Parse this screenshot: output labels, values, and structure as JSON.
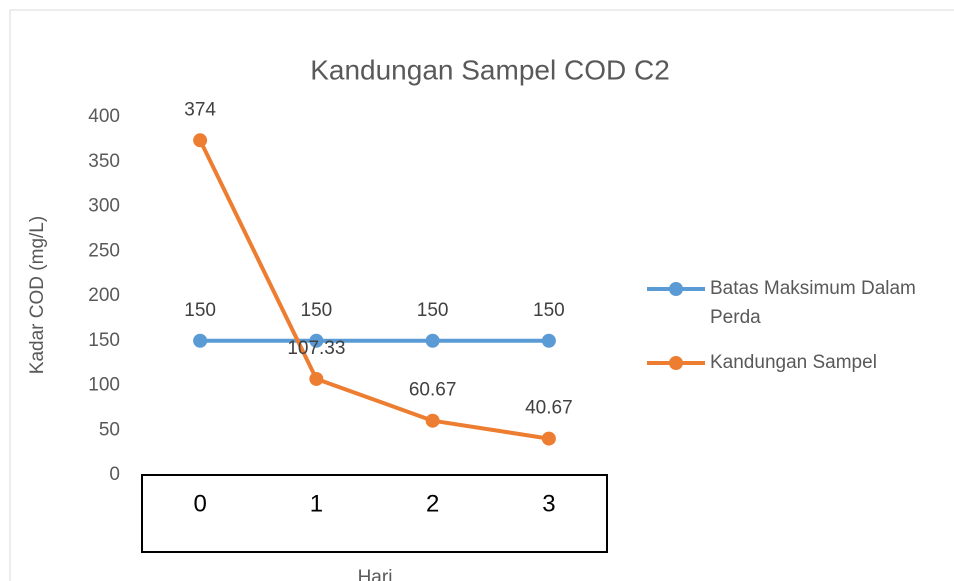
{
  "chart_data": {
    "type": "line",
    "title": "Kandungan Sampel COD C2",
    "xlabel": "Hari",
    "ylabel": "Kadar COD (mg/L)",
    "categories": [
      "0",
      "1",
      "2",
      "3"
    ],
    "series": [
      {
        "name": "Batas Maksimum Dalam Perda",
        "color": "#5b9bd5",
        "values": [
          150,
          150,
          150,
          150
        ]
      },
      {
        "name": "Kandungan Sampel",
        "color": "#ed7d31",
        "values": [
          374,
          107.33,
          60.67,
          40.67
        ]
      }
    ],
    "ylim": [
      0,
      400
    ],
    "yticks": [
      0,
      50,
      100,
      150,
      200,
      250,
      300,
      350,
      400
    ],
    "grid": false,
    "legend": "right"
  }
}
